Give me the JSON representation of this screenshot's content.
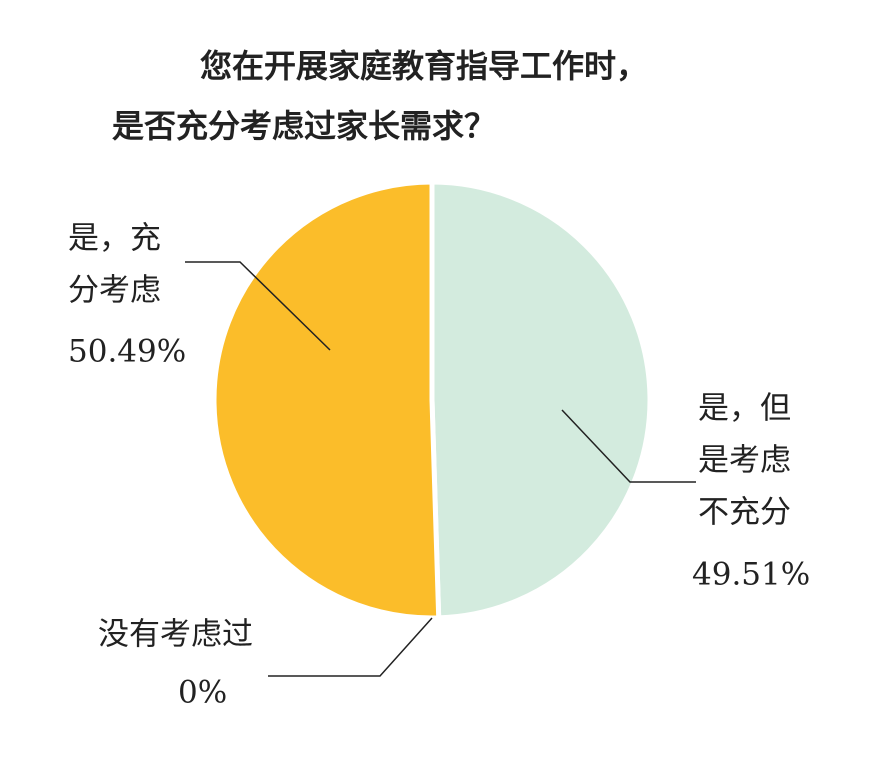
{
  "chart_data": {
    "type": "pie",
    "title": [
      "您在开展家庭教育指导工作时，",
      "是否充分考虑过家长需求？"
    ],
    "categories": [
      [
        "是，充",
        "分考虑"
      ],
      [
        "是，但",
        "是考虑",
        "不充分"
      ],
      [
        "没有考虑过"
      ]
    ],
    "values": [
      50.49,
      49.51,
      0
    ],
    "value_labels": [
      "50.49%",
      "49.51%",
      "0%"
    ],
    "colors": [
      "#fbbd2a",
      "#d3ebde",
      "#ffffff"
    ]
  }
}
